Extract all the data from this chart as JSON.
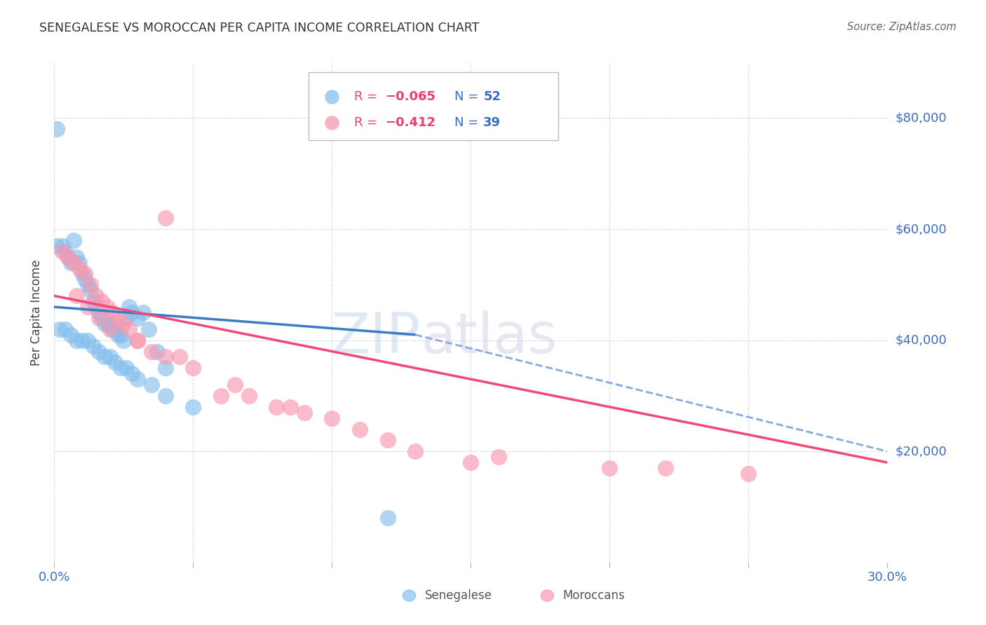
{
  "title": "SENEGALESE VS MOROCCAN PER CAPITA INCOME CORRELATION CHART",
  "source": "Source: ZipAtlas.com",
  "ylabel": "Per Capita Income",
  "watermark_zip": "ZIP",
  "watermark_atlas": "atlas",
  "xlim": [
    0.0,
    0.3
  ],
  "ylim": [
    0,
    90000
  ],
  "yticks": [
    20000,
    40000,
    60000,
    80000
  ],
  "ytick_labels": [
    "$20,000",
    "$40,000",
    "$60,000",
    "$80,000"
  ],
  "background_color": "#ffffff",
  "grid_color": "#cccccc",
  "blue_color": "#85bfee",
  "pink_color": "#f898b0",
  "blue_line_color": "#3a7cc4",
  "pink_line_color": "#f04878",
  "dashed_line_color": "#88aadd",
  "sen_x": [
    0.001,
    0.003,
    0.004,
    0.005,
    0.006,
    0.007,
    0.008,
    0.009,
    0.01,
    0.011,
    0.012,
    0.013,
    0.014,
    0.015,
    0.016,
    0.017,
    0.018,
    0.019,
    0.02,
    0.021,
    0.022,
    0.023,
    0.024,
    0.025,
    0.026,
    0.027,
    0.028,
    0.03,
    0.032,
    0.034,
    0.037,
    0.04,
    0.002,
    0.004,
    0.006,
    0.008,
    0.01,
    0.012,
    0.014,
    0.016,
    0.018,
    0.02,
    0.022,
    0.024,
    0.026,
    0.028,
    0.03,
    0.035,
    0.04,
    0.05,
    0.12,
    0.001
  ],
  "sen_y": [
    57000,
    57000,
    56000,
    55000,
    54000,
    58000,
    55000,
    54000,
    52000,
    51000,
    50000,
    49000,
    47000,
    46000,
    45000,
    44000,
    43000,
    43000,
    43000,
    42000,
    42000,
    41000,
    41000,
    40000,
    44000,
    46000,
    45000,
    44000,
    45000,
    42000,
    38000,
    35000,
    42000,
    42000,
    41000,
    40000,
    40000,
    40000,
    39000,
    38000,
    37000,
    37000,
    36000,
    35000,
    35000,
    34000,
    33000,
    32000,
    30000,
    28000,
    8000,
    78000
  ],
  "mor_x": [
    0.003,
    0.005,
    0.007,
    0.009,
    0.011,
    0.013,
    0.015,
    0.017,
    0.019,
    0.021,
    0.023,
    0.025,
    0.027,
    0.03,
    0.035,
    0.04,
    0.05,
    0.06,
    0.07,
    0.08,
    0.09,
    0.1,
    0.11,
    0.13,
    0.15,
    0.2,
    0.25,
    0.008,
    0.012,
    0.016,
    0.02,
    0.03,
    0.045,
    0.065,
    0.085,
    0.12,
    0.16,
    0.22,
    0.04
  ],
  "mor_y": [
    56000,
    55000,
    54000,
    53000,
    52000,
    50000,
    48000,
    47000,
    46000,
    45000,
    44000,
    43000,
    42000,
    40000,
    38000,
    37000,
    35000,
    30000,
    30000,
    28000,
    27000,
    26000,
    24000,
    20000,
    18000,
    17000,
    16000,
    48000,
    46000,
    44000,
    42000,
    40000,
    37000,
    32000,
    28000,
    22000,
    19000,
    17000,
    62000
  ],
  "sen_line_x0": 0.0,
  "sen_line_x1": 0.13,
  "sen_line_y0": 46000,
  "sen_line_y1": 41000,
  "dash_line_x0": 0.13,
  "dash_line_x1": 0.3,
  "dash_line_y0": 41000,
  "dash_line_y1": 20000,
  "mor_line_x0": 0.0,
  "mor_line_x1": 0.3,
  "mor_line_y0": 48000,
  "mor_line_y1": 18000,
  "legend_R_blue": "R = −0.065",
  "legend_N_blue": "N = 52",
  "legend_R_pink": "R = −0.412",
  "legend_N_pink": "N = 39"
}
